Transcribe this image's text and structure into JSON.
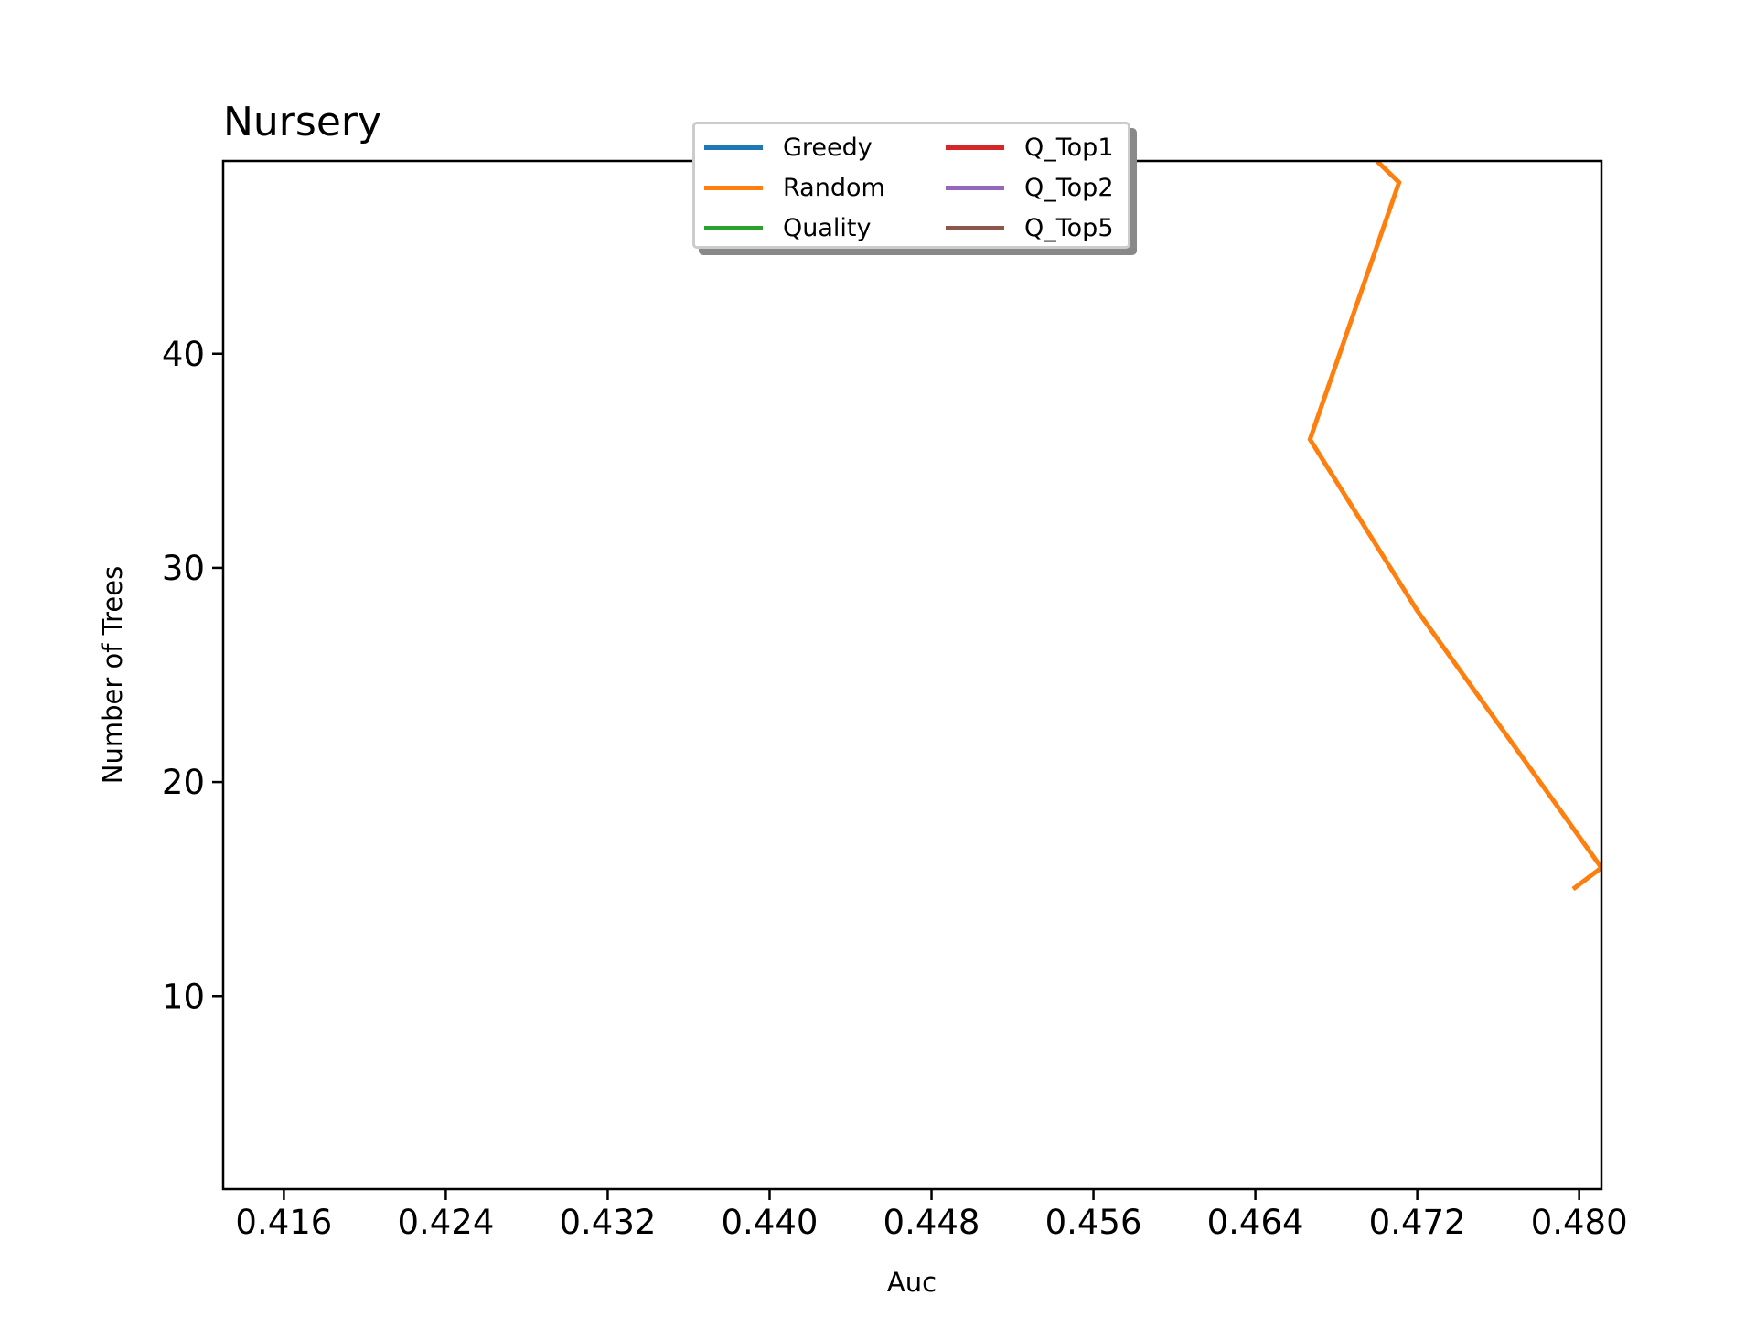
{
  "chart_data": {
    "type": "line",
    "title": "Nursery",
    "xlabel": "Auc",
    "ylabel": "Number of Trees",
    "xlim": [
      0.413,
      0.4811
    ],
    "ylim": [
      1,
      49
    ],
    "xticks": [
      "0.416",
      "0.424",
      "0.432",
      "0.440",
      "0.448",
      "0.456",
      "0.464",
      "0.472",
      "0.480"
    ],
    "yticks": [
      "10",
      "20",
      "30",
      "40"
    ],
    "grid": false,
    "legend_position": "upper center",
    "series": [
      {
        "name": "Greedy",
        "color": "#1f77b4",
        "points": []
      },
      {
        "name": "Random",
        "color": "#ff7f0e",
        "points": [
          [
            0.4797,
            15
          ],
          [
            0.4811,
            16
          ],
          [
            0.472,
            28
          ],
          [
            0.4667,
            36
          ],
          [
            0.4711,
            48
          ],
          [
            0.47,
            49
          ]
        ]
      },
      {
        "name": "Quality",
        "color": "#2ca02c",
        "points": []
      },
      {
        "name": "Q_Top1",
        "color": "#d62728",
        "points": []
      },
      {
        "name": "Q_Top2",
        "color": "#9467bd",
        "points": []
      },
      {
        "name": "Q_Top5",
        "color": "#8c564b",
        "points": []
      }
    ]
  }
}
